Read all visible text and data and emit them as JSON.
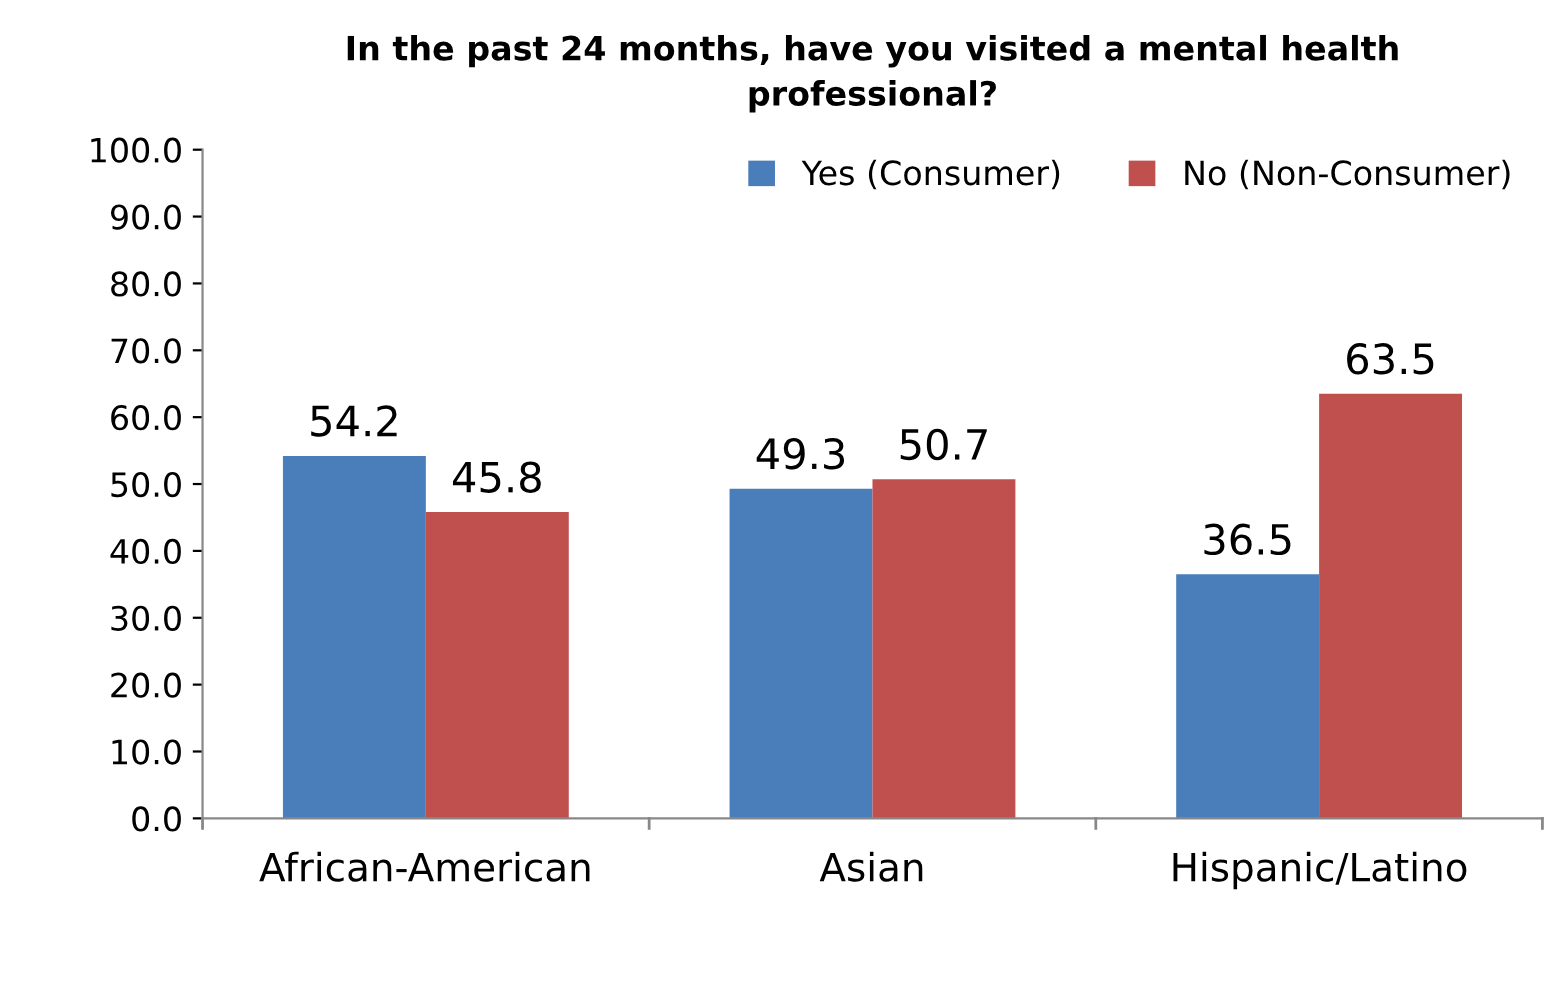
{
  "chart_data": {
    "type": "bar",
    "title": "In the past 24 months, have you visited a mental health\nprofessional?",
    "categories": [
      "African-American",
      "Asian",
      "Hispanic/Latino"
    ],
    "series": [
      {
        "name": "Yes (Consumer)",
        "color": "#4a7ebb",
        "values": [
          54.2,
          49.3,
          36.5
        ]
      },
      {
        "name": "No (Non-Consumer)",
        "color": "#c0504d",
        "values": [
          45.8,
          50.7,
          63.5
        ]
      }
    ],
    "ylim": [
      0,
      100
    ],
    "yticks": [
      {
        "value": 0,
        "label": "0.0"
      },
      {
        "value": 10,
        "label": "10.0"
      },
      {
        "value": 20,
        "label": "20.0"
      },
      {
        "value": 30,
        "label": "30.0"
      },
      {
        "value": 40,
        "label": "40.0"
      },
      {
        "value": 50,
        "label": "50.0"
      },
      {
        "value": 60,
        "label": "60.0"
      },
      {
        "value": 70,
        "label": "70.0"
      },
      {
        "value": 80,
        "label": "80.0"
      },
      {
        "value": 90,
        "label": "90.0"
      },
      {
        "value": 100,
        "label": "100.0"
      }
    ],
    "data_labels": true,
    "grid": false,
    "legend": "top right"
  }
}
